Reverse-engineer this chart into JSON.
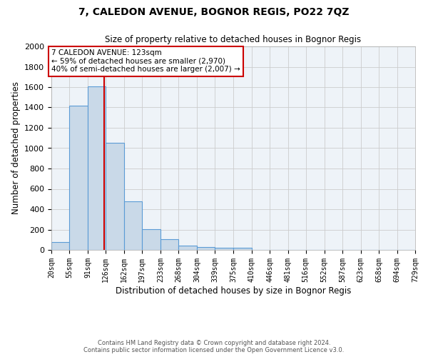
{
  "title1": "7, CALEDON AVENUE, BOGNOR REGIS, PO22 7QZ",
  "title2": "Size of property relative to detached houses in Bognor Regis",
  "xlabel": "Distribution of detached houses by size in Bognor Regis",
  "ylabel": "Number of detached properties",
  "annotation_line1": "7 CALEDON AVENUE: 123sqm",
  "annotation_line2": "← 59% of detached houses are smaller (2,970)",
  "annotation_line3": "40% of semi-detached houses are larger (2,007) →",
  "footer1": "Contains HM Land Registry data © Crown copyright and database right 2024.",
  "footer2": "Contains public sector information licensed under the Open Government Licence v3.0.",
  "bin_edges": [
    20,
    55,
    91,
    126,
    162,
    197,
    233,
    268,
    304,
    339,
    375,
    410,
    446,
    481,
    516,
    552,
    587,
    623,
    658,
    694,
    729
  ],
  "bin_counts": [
    80,
    1420,
    1610,
    1050,
    480,
    205,
    105,
    40,
    30,
    20,
    18,
    0,
    0,
    0,
    0,
    0,
    0,
    0,
    0,
    0
  ],
  "property_size": 123,
  "bar_facecolor": "#c9d9e8",
  "bar_edgecolor": "#5b9bd5",
  "redline_color": "#cc0000",
  "grid_color": "#cccccc",
  "background_color": "#eef3f8",
  "annotation_box_color": "#ffffff",
  "annotation_box_edge": "#cc0000",
  "ylim": [
    0,
    2000
  ],
  "yticks": [
    0,
    200,
    400,
    600,
    800,
    1000,
    1200,
    1400,
    1600,
    1800,
    2000
  ]
}
